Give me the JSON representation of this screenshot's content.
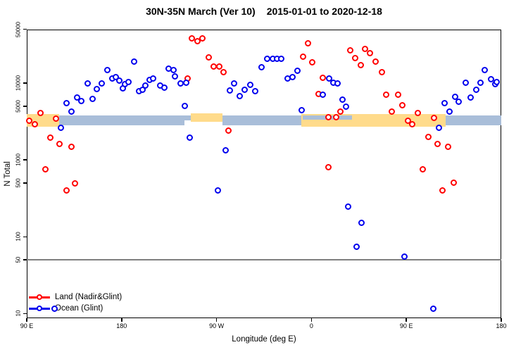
{
  "header": {
    "title_main": "30N-35N March (Ver 10)",
    "title_dates": "2015-01-01 to 2020-12-18"
  },
  "colors": {
    "land_points": "#FF0000",
    "ocean_points": "#0000EE",
    "band_land": "#FFDB8B",
    "band_ocean": "#A9BED9",
    "ref_line": "#7F7F7F",
    "axis": "#000000"
  },
  "chart_data": {
    "type": "scatter",
    "title": "30N-35N March (Ver 10)   2015-01-01 to 2020-12-18",
    "xlabel": "Longitude (deg E)",
    "ylabel": "N Total",
    "y_scale": "log",
    "x_range_deg_east": [
      90,
      540
    ],
    "x_ticks": [
      {
        "lon": 90,
        "label": "90 E"
      },
      {
        "lon": 180,
        "label": "180"
      },
      {
        "lon": 270,
        "label": "90 W"
      },
      {
        "lon": 360,
        "label": "0"
      },
      {
        "lon": 450,
        "label": "90 E"
      },
      {
        "lon": 540,
        "label": "180"
      }
    ],
    "y_ticks": [
      {
        "value": 50000,
        "label": "50000"
      },
      {
        "value": 10000,
        "label": "10000"
      },
      {
        "value": 5000,
        "label": "5000"
      },
      {
        "value": 1000,
        "label": "1000"
      },
      {
        "value": 500,
        "label": "500"
      },
      {
        "value": 100,
        "label": "100"
      },
      {
        "value": 50,
        "label": "50"
      },
      {
        "value": 10,
        "label": "10"
      }
    ],
    "ref_line": {
      "value": 50
    },
    "surface_band": {
      "value_range": [
        2800,
        3900
      ],
      "segments": [
        {
          "from": 90,
          "to": 120.7,
          "kind": "land"
        },
        {
          "from": 120.7,
          "to": 239.6,
          "kind": "ocean"
        },
        {
          "from": 239.6,
          "to": 245.6,
          "kind": "ocean_thin"
        },
        {
          "from": 245.6,
          "to": 275.6,
          "kind": "land_high"
        },
        {
          "from": 275.6,
          "to": 350.4,
          "kind": "ocean"
        },
        {
          "from": 350.4,
          "to": 487.3,
          "kind": "land"
        },
        {
          "from": 352.0,
          "to": 398.5,
          "kind": "ocean_overlay"
        },
        {
          "from": 487.3,
          "to": 540,
          "kind": "ocean"
        }
      ]
    },
    "legend_position": "bottom-left",
    "series": [
      {
        "name": "Land (Nadir&Glint)",
        "marker": "open-circle",
        "points": [
          [
            92.5,
            3180
          ],
          [
            98.0,
            2860
          ],
          [
            103.6,
            4070
          ],
          [
            118.0,
            3440
          ],
          [
            112.5,
            1940
          ],
          [
            121.4,
            1600
          ],
          [
            132.5,
            1470
          ],
          [
            108.0,
            750
          ],
          [
            128.0,
            395
          ],
          [
            135.9,
            490
          ],
          [
            243.1,
            11300
          ],
          [
            247.1,
            37700
          ],
          [
            252.3,
            34800
          ],
          [
            257.1,
            37900
          ],
          [
            262.7,
            21400
          ],
          [
            267.8,
            16400
          ],
          [
            272.7,
            16100
          ],
          [
            277.2,
            13700
          ],
          [
            281.6,
            2380
          ],
          [
            352.2,
            21900
          ],
          [
            357.1,
            32500
          ],
          [
            361.1,
            18500
          ],
          [
            367.3,
            7060
          ],
          [
            371.3,
            11600
          ],
          [
            376.2,
            3580
          ],
          [
            384.0,
            3530
          ],
          [
            387.8,
            4220
          ],
          [
            376.2,
            800
          ],
          [
            397.3,
            26500
          ],
          [
            401.8,
            20900
          ],
          [
            407.0,
            16900
          ],
          [
            411.4,
            27800
          ],
          [
            415.8,
            24300
          ],
          [
            421.2,
            18800
          ],
          [
            427.0,
            13600
          ],
          [
            431.4,
            6920
          ],
          [
            436.7,
            4220
          ],
          [
            442.5,
            6920
          ],
          [
            446.3,
            5100
          ],
          [
            451.9,
            3220
          ],
          [
            455.7,
            2860
          ],
          [
            461.2,
            4070
          ],
          [
            465.9,
            740
          ],
          [
            471.4,
            1970
          ],
          [
            476.4,
            3460
          ],
          [
            479.7,
            1600
          ],
          [
            484.8,
            400
          ],
          [
            490.1,
            1460
          ],
          [
            495.3,
            495
          ]
        ]
      },
      {
        "name": "Ocean (Glint)",
        "marker": "open-circle",
        "points": [
          [
            116.7,
            11.4
          ],
          [
            122.9,
            2570
          ],
          [
            128.1,
            5400
          ],
          [
            132.5,
            4220
          ],
          [
            138.1,
            6440
          ],
          [
            141.9,
            5790
          ],
          [
            148.1,
            9840
          ],
          [
            153.0,
            6220
          ],
          [
            157.0,
            8240
          ],
          [
            161.4,
            9700
          ],
          [
            167.0,
            14500
          ],
          [
            171.4,
            11400
          ],
          [
            174.8,
            11800
          ],
          [
            178.1,
            10600
          ],
          [
            181.5,
            8370
          ],
          [
            183.7,
            9500
          ],
          [
            187.0,
            10200
          ],
          [
            192.1,
            18800
          ],
          [
            197.0,
            7690
          ],
          [
            200.4,
            8150
          ],
          [
            202.6,
            9180
          ],
          [
            206.6,
            10800
          ],
          [
            210.4,
            11400
          ],
          [
            217.1,
            9180
          ],
          [
            221.1,
            8550
          ],
          [
            224.9,
            15400
          ],
          [
            229.4,
            14500
          ],
          [
            231.1,
            12200
          ],
          [
            236.0,
            9840
          ],
          [
            240.5,
            5010
          ],
          [
            241.6,
            9950
          ],
          [
            244.9,
            1930
          ],
          [
            271.6,
            400
          ],
          [
            278.8,
            1320
          ],
          [
            282.7,
            7980
          ],
          [
            287.2,
            9840
          ],
          [
            292.1,
            6670
          ],
          [
            297.2,
            8150
          ],
          [
            302.3,
            9310
          ],
          [
            307.2,
            7800
          ],
          [
            312.8,
            15800
          ],
          [
            318.3,
            20700
          ],
          [
            323.5,
            20300
          ],
          [
            327.7,
            20300
          ],
          [
            331.7,
            20300
          ],
          [
            337.9,
            11400
          ],
          [
            342.4,
            11800
          ],
          [
            346.9,
            14300
          ],
          [
            351.3,
            4370
          ],
          [
            371.1,
            7010
          ],
          [
            377.3,
            11400
          ],
          [
            381.1,
            9950
          ],
          [
            385.1,
            9840
          ],
          [
            390.0,
            6000
          ],
          [
            392.9,
            4920
          ],
          [
            395.3,
            244
          ],
          [
            403.3,
            74
          ],
          [
            407.8,
            150
          ],
          [
            448.3,
            55
          ],
          [
            476.1,
            11.5
          ],
          [
            481.2,
            2610
          ],
          [
            486.8,
            5400
          ],
          [
            491.5,
            4220
          ],
          [
            496.4,
            6530
          ],
          [
            499.7,
            5680
          ],
          [
            506.8,
            9950
          ],
          [
            511.1,
            6440
          ],
          [
            516.4,
            8150
          ],
          [
            520.8,
            9990
          ],
          [
            524.8,
            14500
          ],
          [
            530.8,
            11100
          ],
          [
            534.6,
            9500
          ],
          [
            536.0,
            10300
          ]
        ]
      }
    ]
  }
}
